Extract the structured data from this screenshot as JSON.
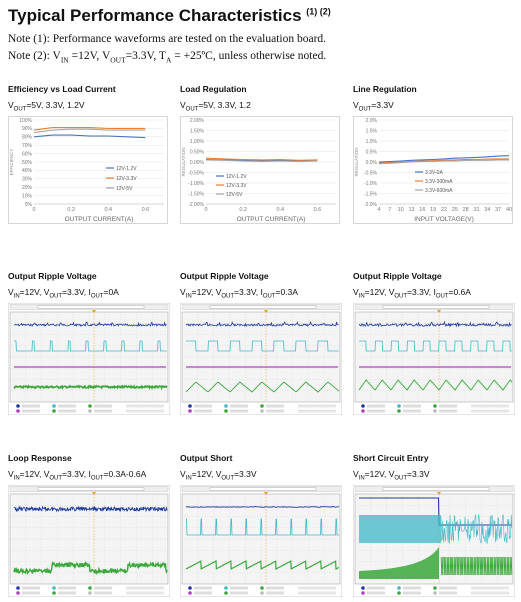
{
  "heading": {
    "title": "Typical Performance Characteristics",
    "marks": "(1) (2)"
  },
  "notes": [
    {
      "id": "n1",
      "pre": "Note (1): Performance waveforms are tested on the evaluation board."
    },
    {
      "id": "n2",
      "pre": "Note (2): V",
      "sub1": "IN",
      "mid1": " =12V, V",
      "sub2": "OUT",
      "mid2": "=3.3V, T",
      "sub3": "A",
      "post": " = +25ºC, unless otherwise noted."
    }
  ],
  "charts": [
    {
      "id": "efficiency",
      "title": "Efficiency vs Load Current",
      "cond": [
        {
          "t": "V"
        },
        {
          "s": "OUT"
        },
        {
          "t": "=5V, 3.3V, 1.2V"
        }
      ],
      "chart_data": {
        "type": "line",
        "xlabel": "OUTPUT CURRENT(A)",
        "ylabel": "EFFICIENCY",
        "x": [
          0,
          0.1,
          0.2,
          0.3,
          0.4,
          0.5,
          0.6
        ],
        "xticks": [
          0,
          0.2,
          0.4,
          0.6
        ],
        "xtick_labels": [
          "0",
          "0.2",
          "0.4",
          "0.6"
        ],
        "xlim": [
          0,
          0.7
        ],
        "ylim": [
          0,
          100
        ],
        "yticks": [
          0,
          10,
          20,
          30,
          40,
          50,
          60,
          70,
          80,
          90,
          100
        ],
        "ytick_labels": [
          "0%",
          "10%",
          "20%",
          "30%",
          "40%",
          "50%",
          "60%",
          "70%",
          "80%",
          "90%",
          "100%"
        ],
        "legend_position": "right",
        "series": [
          {
            "name": "12V-1.2V",
            "color": "#4472c4",
            "values": [
              80,
              82,
              82,
              81,
              81,
              80,
              79
            ]
          },
          {
            "name": "12V-3.3V",
            "color": "#ed7d31",
            "values": [
              88,
              91,
              91,
              91,
              90,
              90,
              90
            ]
          },
          {
            "name": "12V-5V",
            "color": "#a5a5a5",
            "values": [
              85,
              88,
              89,
              89,
              88,
              88,
              88
            ]
          }
        ]
      }
    },
    {
      "id": "load",
      "title": "Load Regulation",
      "cond": [
        {
          "t": "V"
        },
        {
          "s": "OUT"
        },
        {
          "t": "=5V, 3.3V, 1.2"
        }
      ],
      "chart_data": {
        "type": "line",
        "xlabel": "OUTPUT CURRENT(A)",
        "ylabel": "REGULATION",
        "x": [
          0,
          0.1,
          0.2,
          0.3,
          0.4,
          0.5,
          0.6
        ],
        "xticks": [
          0,
          0.2,
          0.4,
          0.6
        ],
        "xtick_labels": [
          "0",
          "0.2",
          "0.4",
          "0.6"
        ],
        "xlim": [
          0,
          0.7
        ],
        "ylim": [
          -2,
          2
        ],
        "yticks": [
          -2,
          -1.5,
          -1,
          -0.5,
          0,
          0.5,
          1,
          1.5,
          2
        ],
        "ytick_labels": [
          "-2.00%",
          "-1.50%",
          "-1.00%",
          "-0.50%",
          "0.00%",
          "0.50%",
          "1.00%",
          "1.50%",
          "2.00%"
        ],
        "legend_position": "bottom-left",
        "series": [
          {
            "name": "12V-1.2V",
            "color": "#4472c4",
            "values": [
              0.12,
              0.1,
              0.08,
              0.05,
              0.08,
              0.05,
              0.1
            ]
          },
          {
            "name": "12V-3.3V",
            "color": "#ed7d31",
            "values": [
              0.18,
              0.15,
              0.12,
              0.1,
              0.12,
              0.08,
              0.1
            ]
          },
          {
            "name": "12V-5V",
            "color": "#a5a5a5",
            "values": [
              0.1,
              0.08,
              0.05,
              0.02,
              0.05,
              0.02,
              0.05
            ]
          }
        ]
      }
    },
    {
      "id": "line",
      "title": "Line Regulation",
      "cond": [
        {
          "t": "V"
        },
        {
          "s": "OUT"
        },
        {
          "t": "=3.3V"
        }
      ],
      "chart_data": {
        "type": "line",
        "xlabel": "INPUT VOLTAGE(V)",
        "ylabel": "REGULATION",
        "x": [
          4,
          7,
          10,
          13,
          16,
          19,
          22,
          25,
          28,
          31,
          34,
          37,
          40
        ],
        "xticks": [
          4,
          7,
          10,
          13,
          16,
          19,
          22,
          25,
          28,
          31,
          34,
          37,
          40
        ],
        "xtick_labels": [
          "4",
          "7",
          "10",
          "13",
          "16",
          "19",
          "22",
          "25",
          "28",
          "31",
          "34",
          "37",
          "40"
        ],
        "xlim": [
          4,
          40
        ],
        "ylim": [
          -2,
          2
        ],
        "yticks": [
          -2,
          -1.5,
          -1,
          -0.5,
          0,
          0.5,
          1,
          1.5,
          2
        ],
        "ytick_labels": [
          "-2.0%",
          "-1.5%",
          "-1.0%",
          "-0.5%",
          "0.0%",
          "0.5%",
          "1.0%",
          "1.5%",
          "2.0%"
        ],
        "legend_position": "bottom-center",
        "series": [
          {
            "name": "3.3V-0A",
            "color": "#4472c4",
            "values": [
              0,
              0.02,
              0.05,
              0.08,
              0.1,
              0.12,
              0.15,
              0.18,
              0.2,
              0.22,
              0.25,
              0.28,
              0.3
            ]
          },
          {
            "name": "3.3V-300mA",
            "color": "#ed7d31",
            "values": [
              -0.05,
              -0.03,
              0,
              0.02,
              0.05,
              0.06,
              0.08,
              0.1,
              0.12,
              0.12,
              0.14,
              0.15,
              0.15
            ]
          },
          {
            "name": "3.3V-600mA",
            "color": "#a5a5a5",
            "values": [
              -0.08,
              -0.06,
              -0.03,
              0,
              0.02,
              0.03,
              0.05,
              0.05,
              0.07,
              0.08,
              0.08,
              0.1,
              0.1
            ]
          }
        ]
      }
    }
  ],
  "scopes": [
    {
      "id": "ripple1",
      "title": "Output Ripple Voltage",
      "cond": [
        {
          "t": "V"
        },
        {
          "s": "IN"
        },
        {
          "t": "=12V, V"
        },
        {
          "s": "OUT"
        },
        {
          "t": "=3.3V, I"
        },
        {
          "s": "OUT"
        },
        {
          "t": "=0A"
        }
      ],
      "kind": "ripple-light"
    },
    {
      "id": "ripple2",
      "title": "Output Ripple Voltage",
      "cond": [
        {
          "t": "V"
        },
        {
          "s": "IN"
        },
        {
          "t": "=12V, V"
        },
        {
          "s": "OUT"
        },
        {
          "t": "=3.3V, I"
        },
        {
          "s": "OUT"
        },
        {
          "t": "=0.3A"
        }
      ],
      "kind": "ripple-mid"
    },
    {
      "id": "ripple3",
      "title": "Output Ripple Voltage",
      "cond": [
        {
          "t": "V"
        },
        {
          "s": "IN"
        },
        {
          "t": "=12V, V"
        },
        {
          "s": "OUT"
        },
        {
          "t": "=3.3V, I"
        },
        {
          "s": "OUT"
        },
        {
          "t": "=0.6A"
        }
      ],
      "kind": "ripple-heavy"
    },
    {
      "id": "loopresp",
      "title": "Loop Response",
      "cond": [
        {
          "t": "V"
        },
        {
          "s": "IN"
        },
        {
          "t": "=12V, V"
        },
        {
          "s": "OUT"
        },
        {
          "t": "=3.3V, I"
        },
        {
          "s": "OUT"
        },
        {
          "t": "=0.3A-0.6A"
        }
      ],
      "kind": "loop"
    },
    {
      "id": "short",
      "title": "Output Short",
      "cond": [
        {
          "t": "V"
        },
        {
          "s": "IN"
        },
        {
          "t": "=12V, V"
        },
        {
          "s": "OUT"
        },
        {
          "t": "=3.3V"
        }
      ],
      "kind": "short"
    },
    {
      "id": "entry",
      "title": "Short Circuit Entry",
      "cond": [
        {
          "t": "V"
        },
        {
          "s": "IN"
        },
        {
          "t": "=12V, V"
        },
        {
          "s": "OUT"
        },
        {
          "t": "=3.3V"
        }
      ],
      "kind": "entry"
    }
  ],
  "colors": {
    "ch1": "#1f3a9e",
    "ch2": "#3fb8c8",
    "ch3": "#b040c0",
    "ch4": "#3aa83a",
    "scopebg": "#f4f4f4",
    "grid": "#c8c8c8"
  }
}
